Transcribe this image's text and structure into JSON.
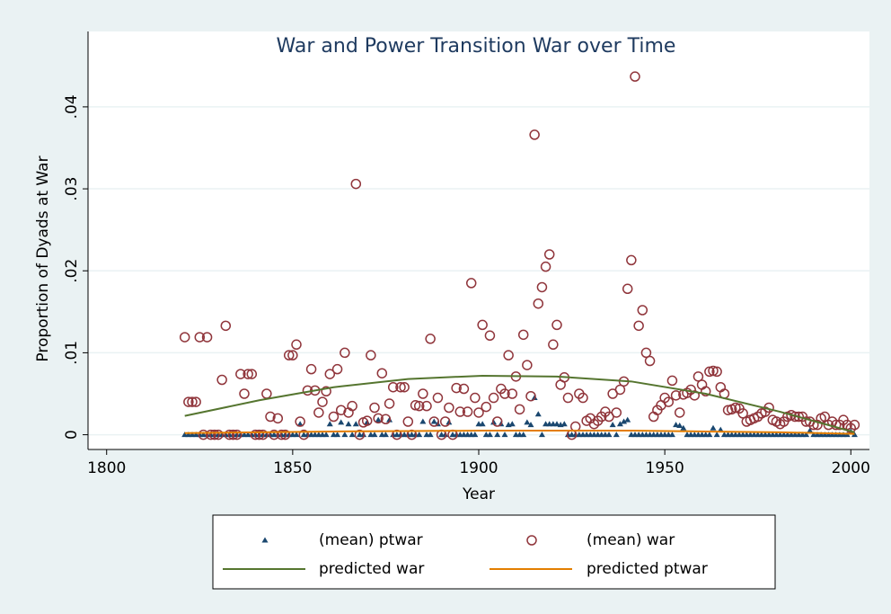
{
  "chart_data": {
    "type": "scatter",
    "title": "War and Power Transition War over Time",
    "x_label": "Year",
    "y_label": "Proportion of Dyads at War",
    "xlim": [
      1795,
      2005
    ],
    "ylim": [
      -0.0018,
      0.0492
    ],
    "xticks": [
      1800,
      1850,
      1900,
      1950,
      2000
    ],
    "yticks": [
      0,
      {
        "value": 0.01,
        "label": ".01"
      },
      {
        "value": 0.02,
        "label": ".02"
      },
      {
        "value": 0.03,
        "label": ".03"
      },
      {
        "value": 0.04,
        "label": ".04"
      }
    ],
    "grid": true,
    "legend": "bottom",
    "x": [
      1821,
      1822,
      1823,
      1824,
      1825,
      1826,
      1827,
      1828,
      1829,
      1830,
      1831,
      1832,
      1833,
      1834,
      1835,
      1836,
      1837,
      1838,
      1839,
      1840,
      1841,
      1842,
      1843,
      1844,
      1845,
      1846,
      1847,
      1848,
      1849,
      1850,
      1851,
      1852,
      1853,
      1854,
      1855,
      1856,
      1857,
      1858,
      1859,
      1860,
      1861,
      1862,
      1863,
      1864,
      1865,
      1866,
      1867,
      1868,
      1869,
      1870,
      1871,
      1872,
      1873,
      1874,
      1875,
      1876,
      1877,
      1878,
      1879,
      1880,
      1881,
      1882,
      1883,
      1884,
      1885,
      1886,
      1887,
      1888,
      1889,
      1890,
      1891,
      1892,
      1893,
      1894,
      1895,
      1896,
      1897,
      1898,
      1899,
      1900,
      1901,
      1902,
      1903,
      1904,
      1905,
      1906,
      1907,
      1908,
      1909,
      1910,
      1911,
      1912,
      1913,
      1914,
      1915,
      1916,
      1917,
      1918,
      1919,
      1920,
      1921,
      1922,
      1923,
      1924,
      1925,
      1926,
      1927,
      1928,
      1929,
      1930,
      1931,
      1932,
      1933,
      1934,
      1935,
      1936,
      1937,
      1938,
      1939,
      1940,
      1941,
      1942,
      1943,
      1944,
      1945,
      1946,
      1947,
      1948,
      1949,
      1950,
      1951,
      1952,
      1953,
      1954,
      1955,
      1956,
      1957,
      1958,
      1959,
      1960,
      1961,
      1962,
      1963,
      1964,
      1965,
      1966,
      1967,
      1968,
      1969,
      1970,
      1971,
      1972,
      1973,
      1974,
      1975,
      1976,
      1977,
      1978,
      1979,
      1980,
      1981,
      1982,
      1983,
      1984,
      1985,
      1986,
      1987,
      1988,
      1989,
      1990,
      1991,
      1992,
      1993,
      1994,
      1995,
      1996,
      1997,
      1998,
      1999,
      2000,
      2001
    ],
    "series": [
      {
        "name": "(mean) ptwar",
        "color": "#1a476f",
        "style": "triangle",
        "values": [
          0,
          0,
          0,
          0,
          0,
          0,
          0,
          0,
          0,
          0,
          0,
          0,
          0,
          0,
          0,
          0,
          0,
          0,
          0,
          0,
          0,
          0,
          0,
          0,
          0,
          0,
          0,
          0,
          0,
          0,
          0,
          0.0013,
          0,
          0,
          0,
          0,
          0,
          0,
          0,
          0.0013,
          0,
          0,
          0.0015,
          0,
          0.0013,
          0,
          0.0013,
          0,
          0,
          0.0015,
          0,
          0,
          0.0018,
          0,
          0,
          0.0018,
          0,
          0,
          0,
          0,
          0,
          0,
          0,
          0,
          0.0016,
          0,
          0,
          0.0016,
          0.0013,
          0,
          0,
          0.0015,
          0,
          0,
          0,
          0,
          0,
          0,
          0,
          0.0013,
          0.0013,
          0,
          0,
          0.0015,
          0,
          0.0013,
          0,
          0.0012,
          0.0013,
          0,
          0,
          0,
          0.0015,
          0.0012,
          0.0045,
          0.0025,
          0,
          0.0013,
          0.0013,
          0.0013,
          0.0013,
          0.0012,
          0.0013,
          0,
          0,
          0,
          0,
          0,
          0,
          0,
          0,
          0,
          0,
          0,
          0,
          0.0012,
          0,
          0.0013,
          0.0016,
          0.0018,
          0,
          0,
          0,
          0,
          0,
          0,
          0,
          0,
          0,
          0,
          0,
          0,
          0.0012,
          0.0011,
          0.0008,
          0,
          0,
          0,
          0,
          0,
          0,
          0,
          0.0008,
          0,
          0.0006,
          0,
          0,
          0,
          0,
          0,
          0,
          0,
          0,
          0,
          0,
          0,
          0,
          0,
          0,
          0,
          0,
          0,
          0,
          0,
          0,
          0,
          0,
          0,
          0.0005,
          0,
          0,
          0,
          0,
          0,
          0,
          0,
          0,
          0,
          0,
          0.0004,
          0
        ]
      },
      {
        "name": "(mean) war",
        "color": "#90353b",
        "style": "circle",
        "values": [
          0.0119,
          0.004,
          0.004,
          0.004,
          0.0119,
          0,
          0.0119,
          0,
          0,
          0,
          0.0067,
          0.0133,
          0,
          0,
          0,
          0.0074,
          0.005,
          0.0074,
          0.0074,
          0,
          0,
          0,
          0.005,
          0.0022,
          0,
          0.002,
          0,
          0,
          0.0097,
          0.0097,
          0.011,
          0.0016,
          0,
          0.0054,
          0.008,
          0.0054,
          0.0027,
          0.004,
          0.0053,
          0.0074,
          0.0022,
          0.008,
          0.003,
          0.01,
          0.0027,
          0.0035,
          0.0306,
          0,
          0.0015,
          0.0017,
          0.0097,
          0.0033,
          0.002,
          0.0075,
          0.0019,
          0.0038,
          0.0058,
          0,
          0.0058,
          0.0058,
          0.0016,
          0,
          0.0036,
          0.0035,
          0.005,
          0.0035,
          0.0117,
          0.0016,
          0.0045,
          0,
          0.0016,
          0.0033,
          0,
          0.0057,
          0.0028,
          0.0056,
          0.0028,
          0.0185,
          0.0045,
          0.0027,
          0.0134,
          0.0034,
          0.0121,
          0.0045,
          0.0016,
          0.0056,
          0.005,
          0.0097,
          0.005,
          0.0071,
          0.0031,
          0.0122,
          0.0085,
          0.0047,
          0.0366,
          0.016,
          0.018,
          0.0205,
          0.022,
          0.011,
          0.0134,
          0.0061,
          0.007,
          0.0045,
          0,
          0.001,
          0.005,
          0.0045,
          0.0017,
          0.002,
          0.0013,
          0.0017,
          0.0022,
          0.0028,
          0.0022,
          0.005,
          0.0027,
          0.0055,
          0.0065,
          0.0178,
          0.0213,
          0.0437,
          0.0133,
          0.0152,
          0.01,
          0.009,
          0.0022,
          0.003,
          0.0036,
          0.0045,
          0.004,
          0.0066,
          0.0048,
          0.0027,
          0.0049,
          0.0051,
          0.0055,
          0.0048,
          0.0071,
          0.0061,
          0.0053,
          0.0077,
          0.0078,
          0.0077,
          0.0058,
          0.005,
          0.003,
          0.0031,
          0.0033,
          0.0032,
          0.0026,
          0.0016,
          0.0018,
          0.002,
          0.0022,
          0.0026,
          0.0028,
          0.0033,
          0.0018,
          0.0016,
          0.0013,
          0.0016,
          0.0022,
          0.0024,
          0.0022,
          0.0022,
          0.0022,
          0.0016,
          0.0016,
          0.0012,
          0.0012,
          0.002,
          0.0022,
          0.0012,
          0.0016,
          0.0012,
          0.0012,
          0.0018,
          0.0012,
          0.0008,
          0.0012
        ]
      },
      {
        "name": "predicted war",
        "color": "#55752f",
        "style": "line",
        "x": [
          1821,
          1841,
          1861,
          1881,
          1901,
          1921,
          1941,
          1961,
          1981,
          2001
        ],
        "values": [
          0.0023,
          0.0042,
          0.0058,
          0.0068,
          0.0072,
          0.0071,
          0.0065,
          0.005,
          0.0028,
          0.0003
        ]
      },
      {
        "name": "predicted ptwar",
        "color": "#e37e00",
        "style": "line",
        "x": [
          1821,
          1841,
          1861,
          1881,
          1901,
          1921,
          1941,
          1961,
          1981,
          2001
        ],
        "values": [
          0.0002,
          0.0003,
          0.0004,
          0.00045,
          0.0005,
          0.0005,
          0.0005,
          0.0004,
          0.0003,
          0.0001
        ]
      }
    ]
  }
}
